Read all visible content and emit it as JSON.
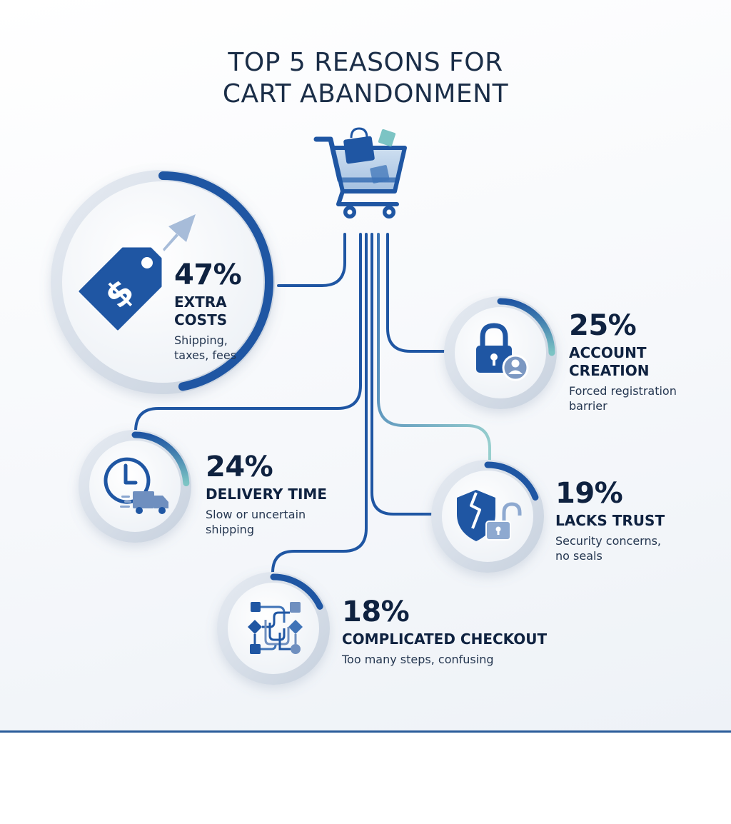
{
  "title": {
    "line1": "TOP 5 REASONS FOR",
    "line2": "CART ABANDONMENT"
  },
  "colors": {
    "navy": "#0f2240",
    "primary_blue": "#1f56a3",
    "teal": "#7cc4c4",
    "rule": "#2a5c9a"
  },
  "central_icon": "shopping-cart-icon",
  "reasons": [
    {
      "percent": "47%",
      "heading_lines": [
        "EXTRA",
        "COSTS"
      ],
      "desc_lines": [
        "Shipping,",
        "taxes, fees"
      ],
      "value": 47,
      "icon": "price-tag-dollar-icon"
    },
    {
      "percent": "25%",
      "heading_lines": [
        "ACCOUNT",
        "CREATION"
      ],
      "desc_lines": [
        "Forced registration",
        "barrier"
      ],
      "value": 25,
      "icon": "padlock-user-icon"
    },
    {
      "percent": "24%",
      "heading_lines": [
        "DELIVERY TIME"
      ],
      "desc_lines": [
        "Slow or uncertain",
        "shipping"
      ],
      "value": 24,
      "icon": "clock-delivery-truck-icon"
    },
    {
      "percent": "19%",
      "heading_lines": [
        "LACKS TRUST"
      ],
      "desc_lines": [
        "Security concerns,",
        "no seals"
      ],
      "value": 19,
      "icon": "broken-shield-unlocked-padlock-icon"
    },
    {
      "percent": "18%",
      "heading_lines": [
        "COMPLICATED CHECKOUT"
      ],
      "desc_lines": [
        "Too many steps, confusing"
      ],
      "value": 18,
      "icon": "tangled-flowchart-icon"
    }
  ]
}
